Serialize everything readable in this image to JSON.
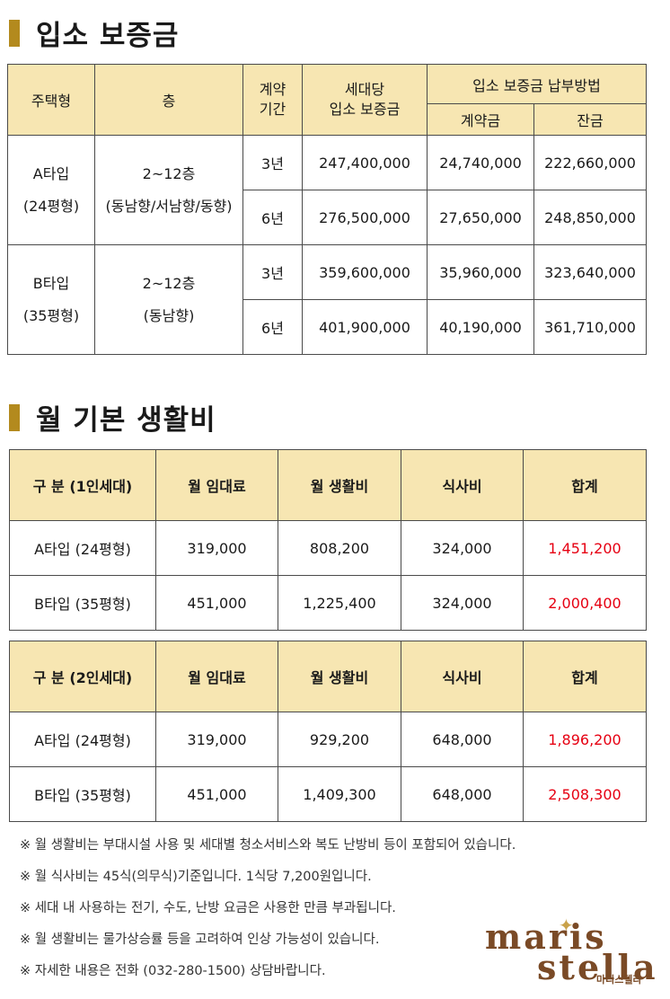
{
  "deposit_section": {
    "title": "입소 보증금",
    "headers": {
      "house_type": "주택형",
      "floor": "층",
      "contract_period": "계약\n기간",
      "deposit_per_household": "세대당\n입소 보증금",
      "payment_method": "입소 보증금 납부방법",
      "down_payment": "계약금",
      "balance": "잔금"
    },
    "groups": [
      {
        "type": "A타입",
        "size": "(24평형)",
        "floor": "2~12층",
        "orientation": "(동남향/서남향/동향)",
        "rows": [
          {
            "period": "3년",
            "deposit": "247,400,000",
            "down": "24,740,000",
            "balance": "222,660,000"
          },
          {
            "period": "6년",
            "deposit": "276,500,000",
            "down": "27,650,000",
            "balance": "248,850,000"
          }
        ]
      },
      {
        "type": "B타입",
        "size": "(35평형)",
        "floor": "2~12층",
        "orientation": "(동남향)",
        "rows": [
          {
            "period": "3년",
            "deposit": "359,600,000",
            "down": "35,960,000",
            "balance": "323,640,000"
          },
          {
            "period": "6년",
            "deposit": "401,900,000",
            "down": "40,190,000",
            "balance": "361,710,000"
          }
        ]
      }
    ]
  },
  "living_section": {
    "title": "월 기본 생활비",
    "tables": [
      {
        "headers": [
          "구 분 (1인세대)",
          "월 임대료",
          "월 생활비",
          "식사비",
          "합계"
        ],
        "rows": [
          {
            "label": "A타입 (24평형)",
            "rent": "319,000",
            "living": "808,200",
            "meal": "324,000",
            "total": "1,451,200"
          },
          {
            "label": "B타입 (35평형)",
            "rent": "451,000",
            "living": "1,225,400",
            "meal": "324,000",
            "total": "2,000,400"
          }
        ]
      },
      {
        "headers": [
          "구 분 (2인세대)",
          "월 임대료",
          "월 생활비",
          "식사비",
          "합계"
        ],
        "rows": [
          {
            "label": "A타입 (24평형)",
            "rent": "319,000",
            "living": "929,200",
            "meal": "648,000",
            "total": "1,896,200"
          },
          {
            "label": "B타입 (35평형)",
            "rent": "451,000",
            "living": "1,409,300",
            "meal": "648,000",
            "total": "2,508,300"
          }
        ]
      }
    ]
  },
  "notes": [
    "※ 월 생활비는 부대시설 사용 및 세대별 청소서비스와 복도 난방비 등이 포함되어 있습니다.",
    "※ 월 식사비는 45식(의무식)기준입니다. 1식당 7,200원입니다.",
    "※ 세대 내 사용하는 전기, 수도, 난방 요금은 사용한 만큼 부과됩니다.",
    "※ 월  생활비는 물가상승률 등을 고려하여 인상 가능성이 있습니다.",
    "※ 자세한 내용은 전화 (032-280-1500) 상담바랍니다."
  ],
  "logo": {
    "line1": "maris",
    "line2": "stella",
    "sub": "마리스텔라"
  },
  "colors": {
    "accent_bar": "#b38a1e",
    "header_bg": "#f7e6b2",
    "total_text": "#e60012",
    "logo": "#7a4a26"
  }
}
